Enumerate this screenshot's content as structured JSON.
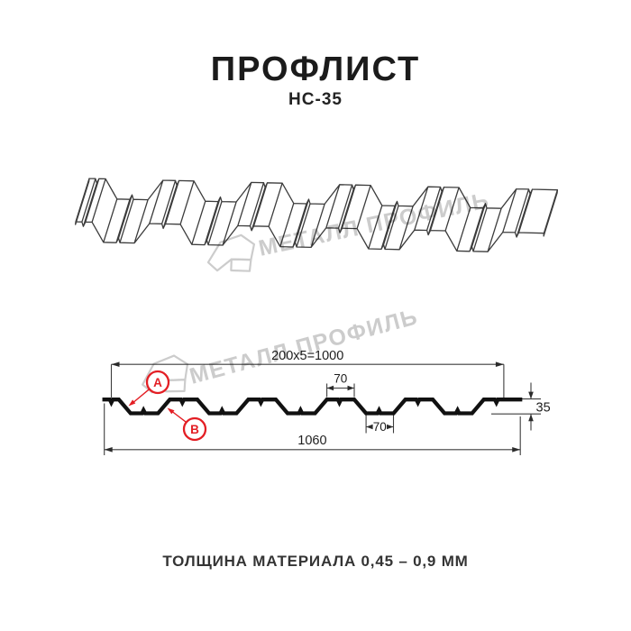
{
  "header": {
    "title": "ПРОФЛИСТ",
    "subtitle": "НС-35"
  },
  "watermark": {
    "text": "МЕТАЛЛ ПРОФИЛЬ",
    "color": "#cccccc"
  },
  "callouts": {
    "a": "А",
    "b": "В",
    "color": "#e31e24"
  },
  "section": {
    "dims": {
      "pitch": "200x5=1000",
      "top_flange": "70",
      "bottom_flange": "70",
      "height": "35",
      "overall": "1060"
    }
  },
  "footer": {
    "note": "ТОЛЩИНА МАТЕРИАЛА 0,45 – 0,9 ММ"
  },
  "colors": {
    "accent_red": "#e31e24",
    "line_dark": "#1e1e1e",
    "dim_line": "#3d3d3d",
    "watermark_gray": "#cccccc"
  }
}
